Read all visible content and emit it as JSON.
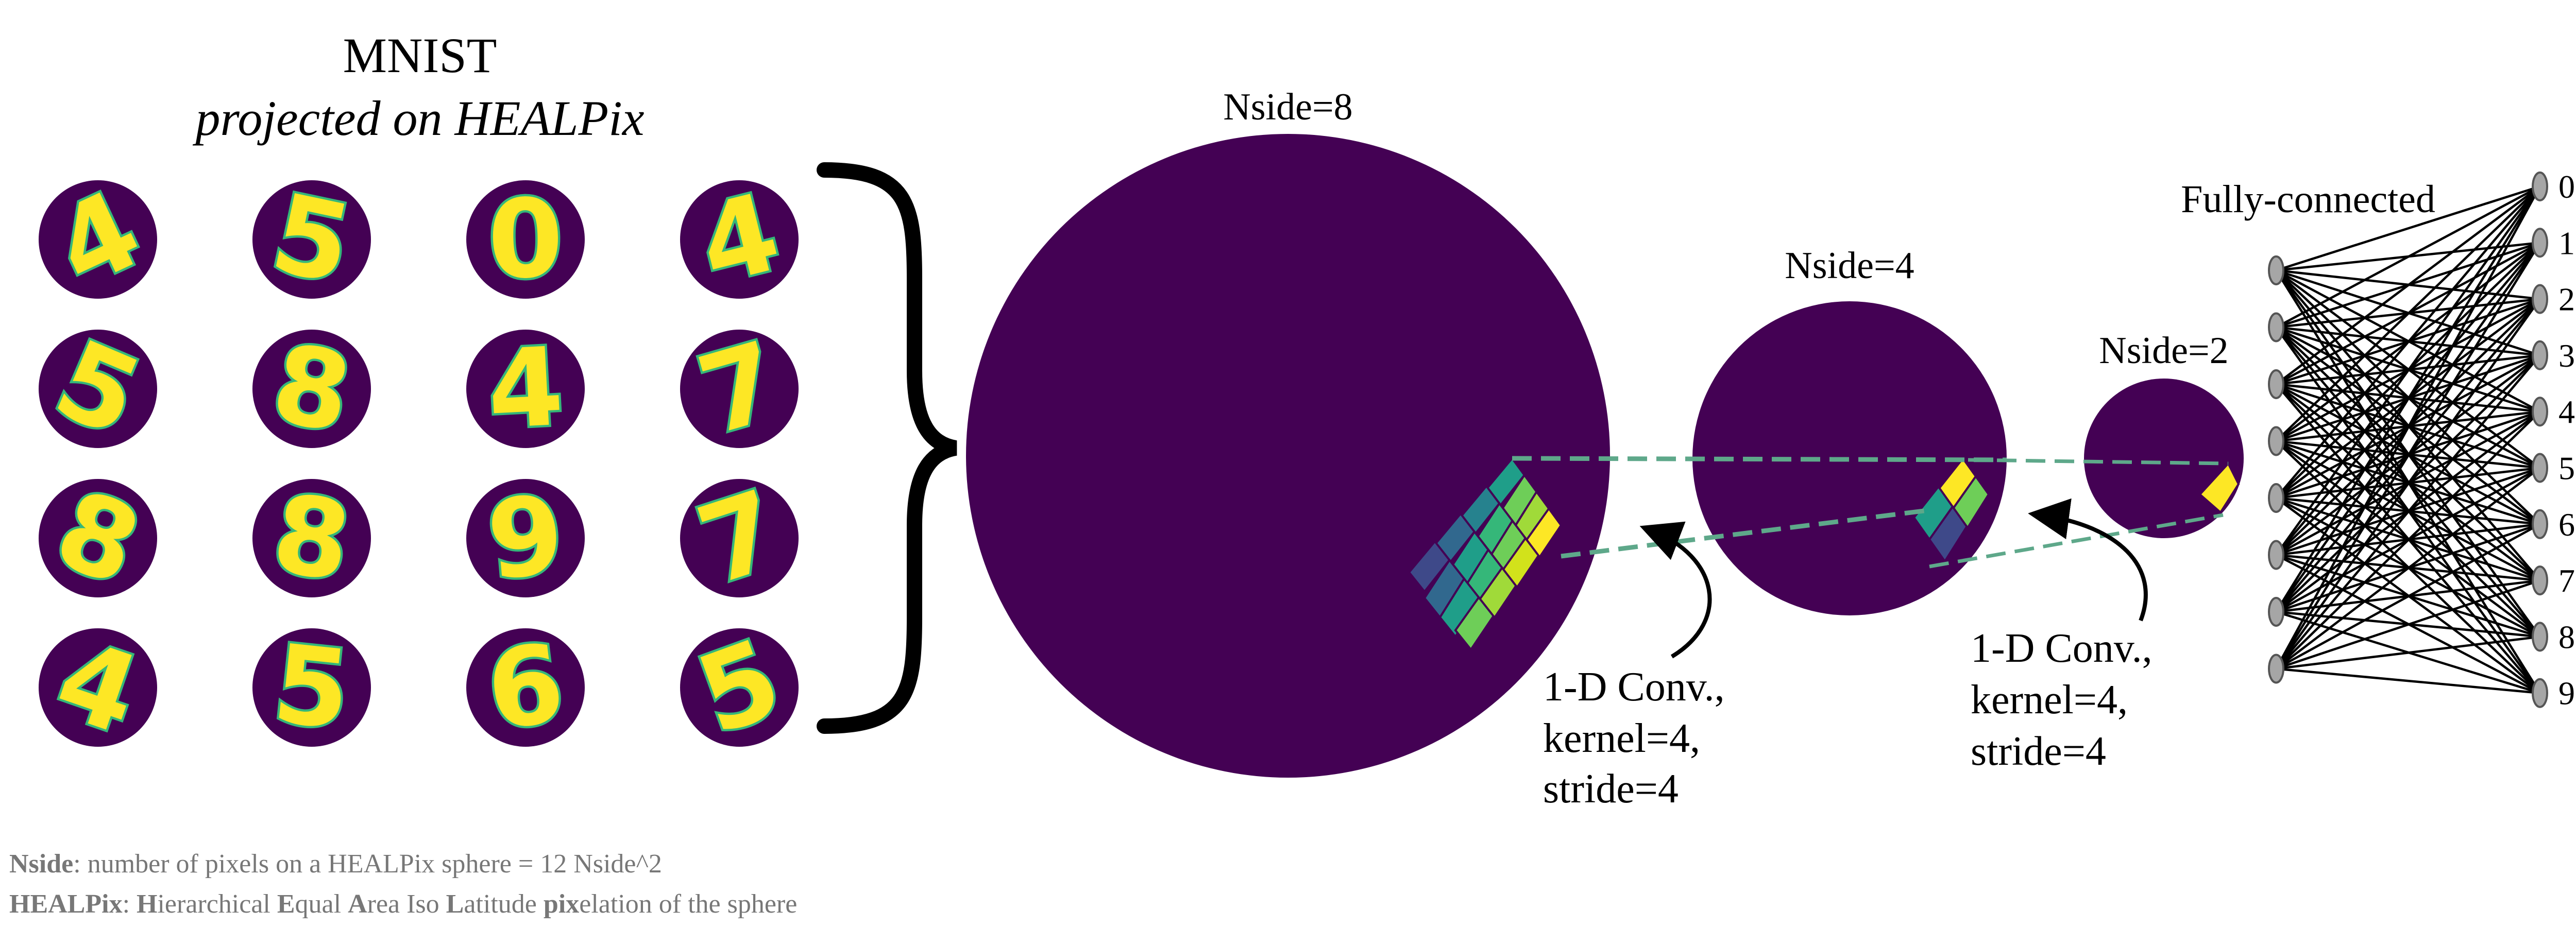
{
  "mnist": {
    "title": "MNIST",
    "subtitle": "projected on HEALPix",
    "digits": [
      "4",
      "5",
      "0",
      "4",
      "5",
      "8",
      "4",
      "7",
      "8",
      "8",
      "9",
      "7",
      "4",
      "5",
      "6",
      "5"
    ]
  },
  "spheres": [
    {
      "label": "Nside=8"
    },
    {
      "label": "Nside=4"
    },
    {
      "label": "Nside=2"
    }
  ],
  "conv_labels": [
    {
      "line1": "1-D Conv.,",
      "line2": "kernel=4,",
      "line3": "stride=4"
    },
    {
      "line1": "1-D Conv.,",
      "line2": "kernel=4,",
      "line3": "stride=4"
    }
  ],
  "fc": {
    "title": "Fully-connected",
    "inputs": 8,
    "outputs": [
      "0",
      "1",
      "2",
      "3",
      "4",
      "5",
      "6",
      "7",
      "8",
      "9"
    ]
  },
  "footnote": {
    "line1": {
      "term": "Nside",
      "rest": ": number of pixels on a HEALPix sphere = 12 Nside^2"
    },
    "line2": {
      "parts": [
        {
          "t": "HEALPix",
          "b": true
        },
        {
          "t": ": ",
          "b": false
        },
        {
          "t": "H",
          "b": true
        },
        {
          "t": "ierarchical ",
          "b": false
        },
        {
          "t": "E",
          "b": true
        },
        {
          "t": "qual ",
          "b": false
        },
        {
          "t": "A",
          "b": true
        },
        {
          "t": "rea Iso ",
          "b": false
        },
        {
          "t": "L",
          "b": true
        },
        {
          "t": "atitude ",
          "b": false
        },
        {
          "t": "pix",
          "b": true
        },
        {
          "t": "elation of the sphere",
          "b": false
        }
      ]
    }
  },
  "colors": {
    "sphere": "#440154",
    "digit": "#fde725",
    "edge_a": "#35b779",
    "edge_b": "#31688e",
    "dashed": "#5ea88a",
    "node": "#a6a6a6"
  }
}
